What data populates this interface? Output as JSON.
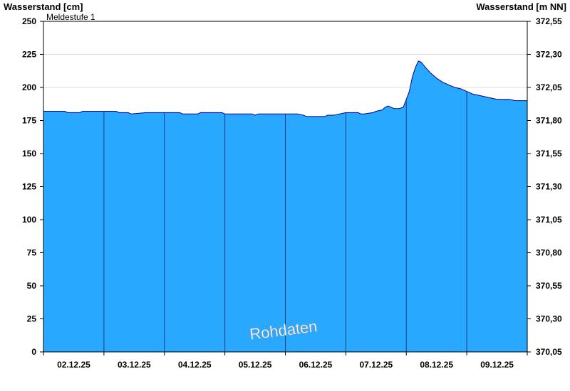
{
  "chart_data": {
    "type": "area",
    "y_left_label": "Wasserstand [cm]",
    "y_right_label": "Wasserstand [m NN]",
    "ylim": [
      0,
      250
    ],
    "y_ticks": [
      0,
      25,
      50,
      75,
      100,
      125,
      150,
      175,
      200,
      225,
      250
    ],
    "y_tick_labels": [
      "0",
      "25",
      "50",
      "75",
      "100",
      "125",
      "150",
      "175",
      "200",
      "225",
      "250"
    ],
    "y_right_tick_labels": [
      "370,05",
      "370,30",
      "370,55",
      "370,80",
      "371,05",
      "371,30",
      "371,55",
      "371,80",
      "372,05",
      "372,30",
      "372,55"
    ],
    "x_day_labels": [
      "02.12.25",
      "03.12.25",
      "04.12.25",
      "05.12.25",
      "06.12.25",
      "07.12.25",
      "08.12.25",
      "09.12.25"
    ],
    "xlim": [
      0,
      8
    ],
    "threshold": {
      "label": "Meldestufe 1",
      "value": 250,
      "color": "#f0c060"
    },
    "watermark": "Rohdaten",
    "fill_color": "#29a8ff",
    "line_color": "#00008b",
    "x": [
      0,
      0.35,
      0.4,
      0.6,
      0.65,
      1.0,
      1.2,
      1.25,
      1.4,
      1.45,
      1.7,
      2.0,
      2.25,
      2.3,
      2.55,
      2.6,
      2.95,
      3.0,
      3.45,
      3.5,
      3.55,
      4.0,
      4.2,
      4.3,
      4.35,
      4.65,
      4.7,
      4.8,
      4.9,
      5.0,
      5.2,
      5.25,
      5.3,
      5.45,
      5.5,
      5.6,
      5.65,
      5.7,
      5.75,
      5.8,
      5.88,
      5.95,
      6.05,
      6.1,
      6.15,
      6.2,
      6.25,
      6.3,
      6.4,
      6.5,
      6.6,
      6.7,
      6.8,
      6.9,
      7.0,
      7.1,
      7.2,
      7.3,
      7.4,
      7.5,
      7.6,
      7.7,
      7.8,
      7.9,
      8.0
    ],
    "y": [
      182,
      182,
      181,
      181,
      182,
      182,
      182,
      181,
      181,
      180,
      181,
      181,
      181,
      180,
      180,
      181,
      181,
      180,
      180,
      179,
      180,
      180,
      180,
      179,
      178,
      178,
      179,
      179,
      180,
      181,
      181,
      180,
      180,
      181,
      182,
      183,
      185,
      186,
      185,
      184,
      184,
      185,
      197,
      208,
      215,
      220,
      219,
      216,
      211,
      207,
      204,
      202,
      200,
      199,
      197,
      195,
      194,
      193,
      192,
      191,
      191,
      191,
      190,
      190,
      190
    ]
  }
}
